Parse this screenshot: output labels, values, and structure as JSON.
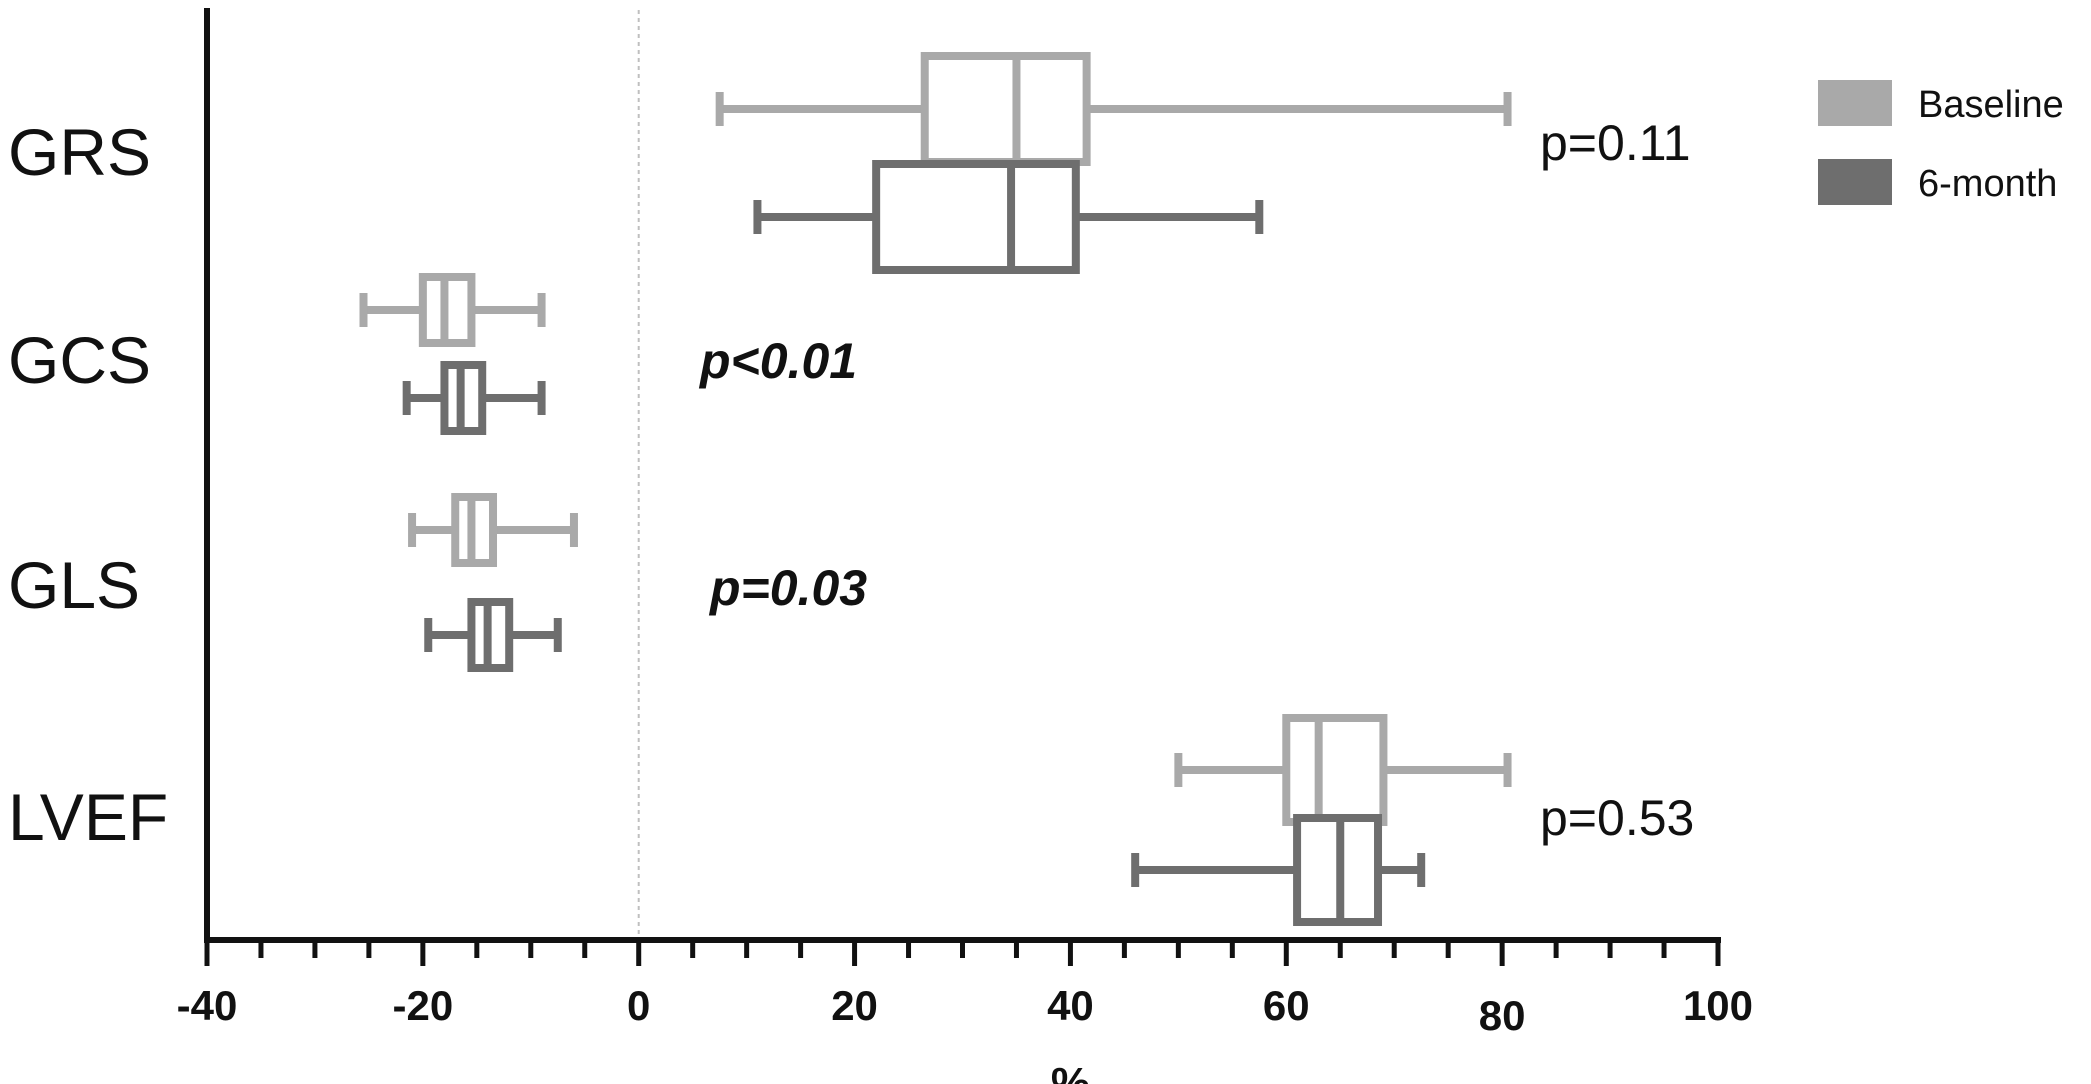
{
  "chart_data": {
    "type": "boxplot",
    "orientation": "horizontal",
    "xlabel": "%",
    "xlim": [
      -40,
      100
    ],
    "xticks": [
      -40,
      -20,
      0,
      20,
      40,
      60,
      80,
      100
    ],
    "xtick_labels": [
      "-40",
      "-20",
      "0",
      "20",
      "40",
      "60",
      "80",
      "100"
    ],
    "reference_line": 0,
    "legend_position": "top-right",
    "series": [
      {
        "name": "Baseline",
        "color": "#a9a9a9"
      },
      {
        "name": "6-month",
        "color": "#6e6e6e"
      }
    ],
    "categories": [
      {
        "label": "GRS",
        "p_value": "p=0.11",
        "p_bold": false,
        "boxes": [
          {
            "series": "Baseline",
            "min": 7.5,
            "q1": 26.5,
            "median": 35,
            "q3": 41.5,
            "max": 80.5
          },
          {
            "series": "6-month",
            "min": 11,
            "q1": 22,
            "median": 34.5,
            "q3": 40.5,
            "max": 57.5
          }
        ]
      },
      {
        "label": "GCS",
        "p_value": "p<0.01",
        "p_bold": true,
        "boxes": [
          {
            "series": "Baseline",
            "min": -25.5,
            "q1": -20,
            "median": -18,
            "q3": -15.5,
            "max": -9
          },
          {
            "series": "6-month",
            "min": -21.5,
            "q1": -18,
            "median": -16.5,
            "q3": -14.5,
            "max": -9
          }
        ]
      },
      {
        "label": "GLS",
        "p_value": "p=0.03",
        "p_bold": true,
        "boxes": [
          {
            "series": "Baseline",
            "min": -21,
            "q1": -17,
            "median": -15.5,
            "q3": -13.5,
            "max": -6
          },
          {
            "series": "6-month",
            "min": -19.5,
            "q1": -15.5,
            "median": -14,
            "q3": -12,
            "max": -7.5
          }
        ]
      },
      {
        "label": "LVEF",
        "p_value": "p=0.53",
        "p_bold": false,
        "boxes": [
          {
            "series": "Baseline",
            "min": 50,
            "q1": 60,
            "median": 63,
            "q3": 69,
            "max": 80.5
          },
          {
            "series": "6-month",
            "min": 46,
            "q1": 61,
            "median": 65,
            "q3": 68.5,
            "max": 72.5
          }
        ]
      }
    ]
  }
}
